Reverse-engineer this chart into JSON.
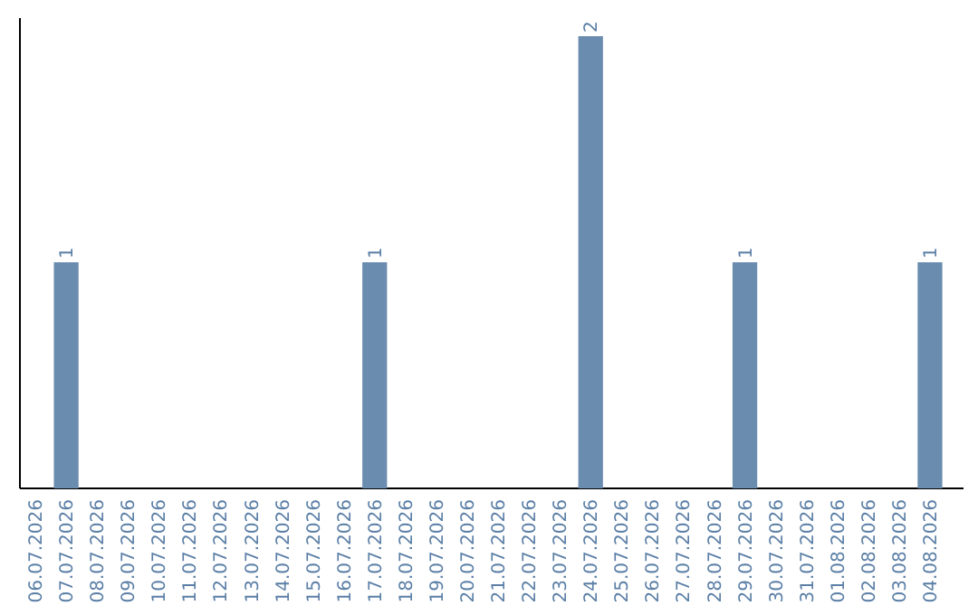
{
  "chart_data": {
    "type": "bar",
    "categories": [
      "06.07.2026",
      "07.07.2026",
      "08.07.2026",
      "09.07.2026",
      "10.07.2026",
      "11.07.2026",
      "12.07.2026",
      "13.07.2026",
      "14.07.2026",
      "15.07.2026",
      "16.07.2026",
      "17.07.2026",
      "18.07.2026",
      "19.07.2026",
      "20.07.2026",
      "21.07.2026",
      "22.07.2026",
      "23.07.2026",
      "24.07.2026",
      "25.07.2026",
      "26.07.2026",
      "27.07.2026",
      "28.07.2026",
      "29.07.2026",
      "30.07.2026",
      "31.07.2026",
      "01.08.2026",
      "02.08.2026",
      "03.08.2026",
      "04.08.2026"
    ],
    "values": [
      0,
      1,
      0,
      0,
      0,
      0,
      0,
      0,
      0,
      0,
      0,
      1,
      0,
      0,
      0,
      0,
      0,
      0,
      2,
      0,
      0,
      0,
      0,
      1,
      0,
      0,
      0,
      0,
      0,
      1
    ],
    "value_labels": [
      null,
      "1",
      null,
      null,
      null,
      null,
      null,
      null,
      null,
      null,
      null,
      "1",
      null,
      null,
      null,
      null,
      null,
      null,
      "2",
      null,
      null,
      null,
      null,
      "1",
      null,
      null,
      null,
      null,
      null,
      "1"
    ],
    "color": "#6a8caf",
    "tick_labels": "x"
  }
}
